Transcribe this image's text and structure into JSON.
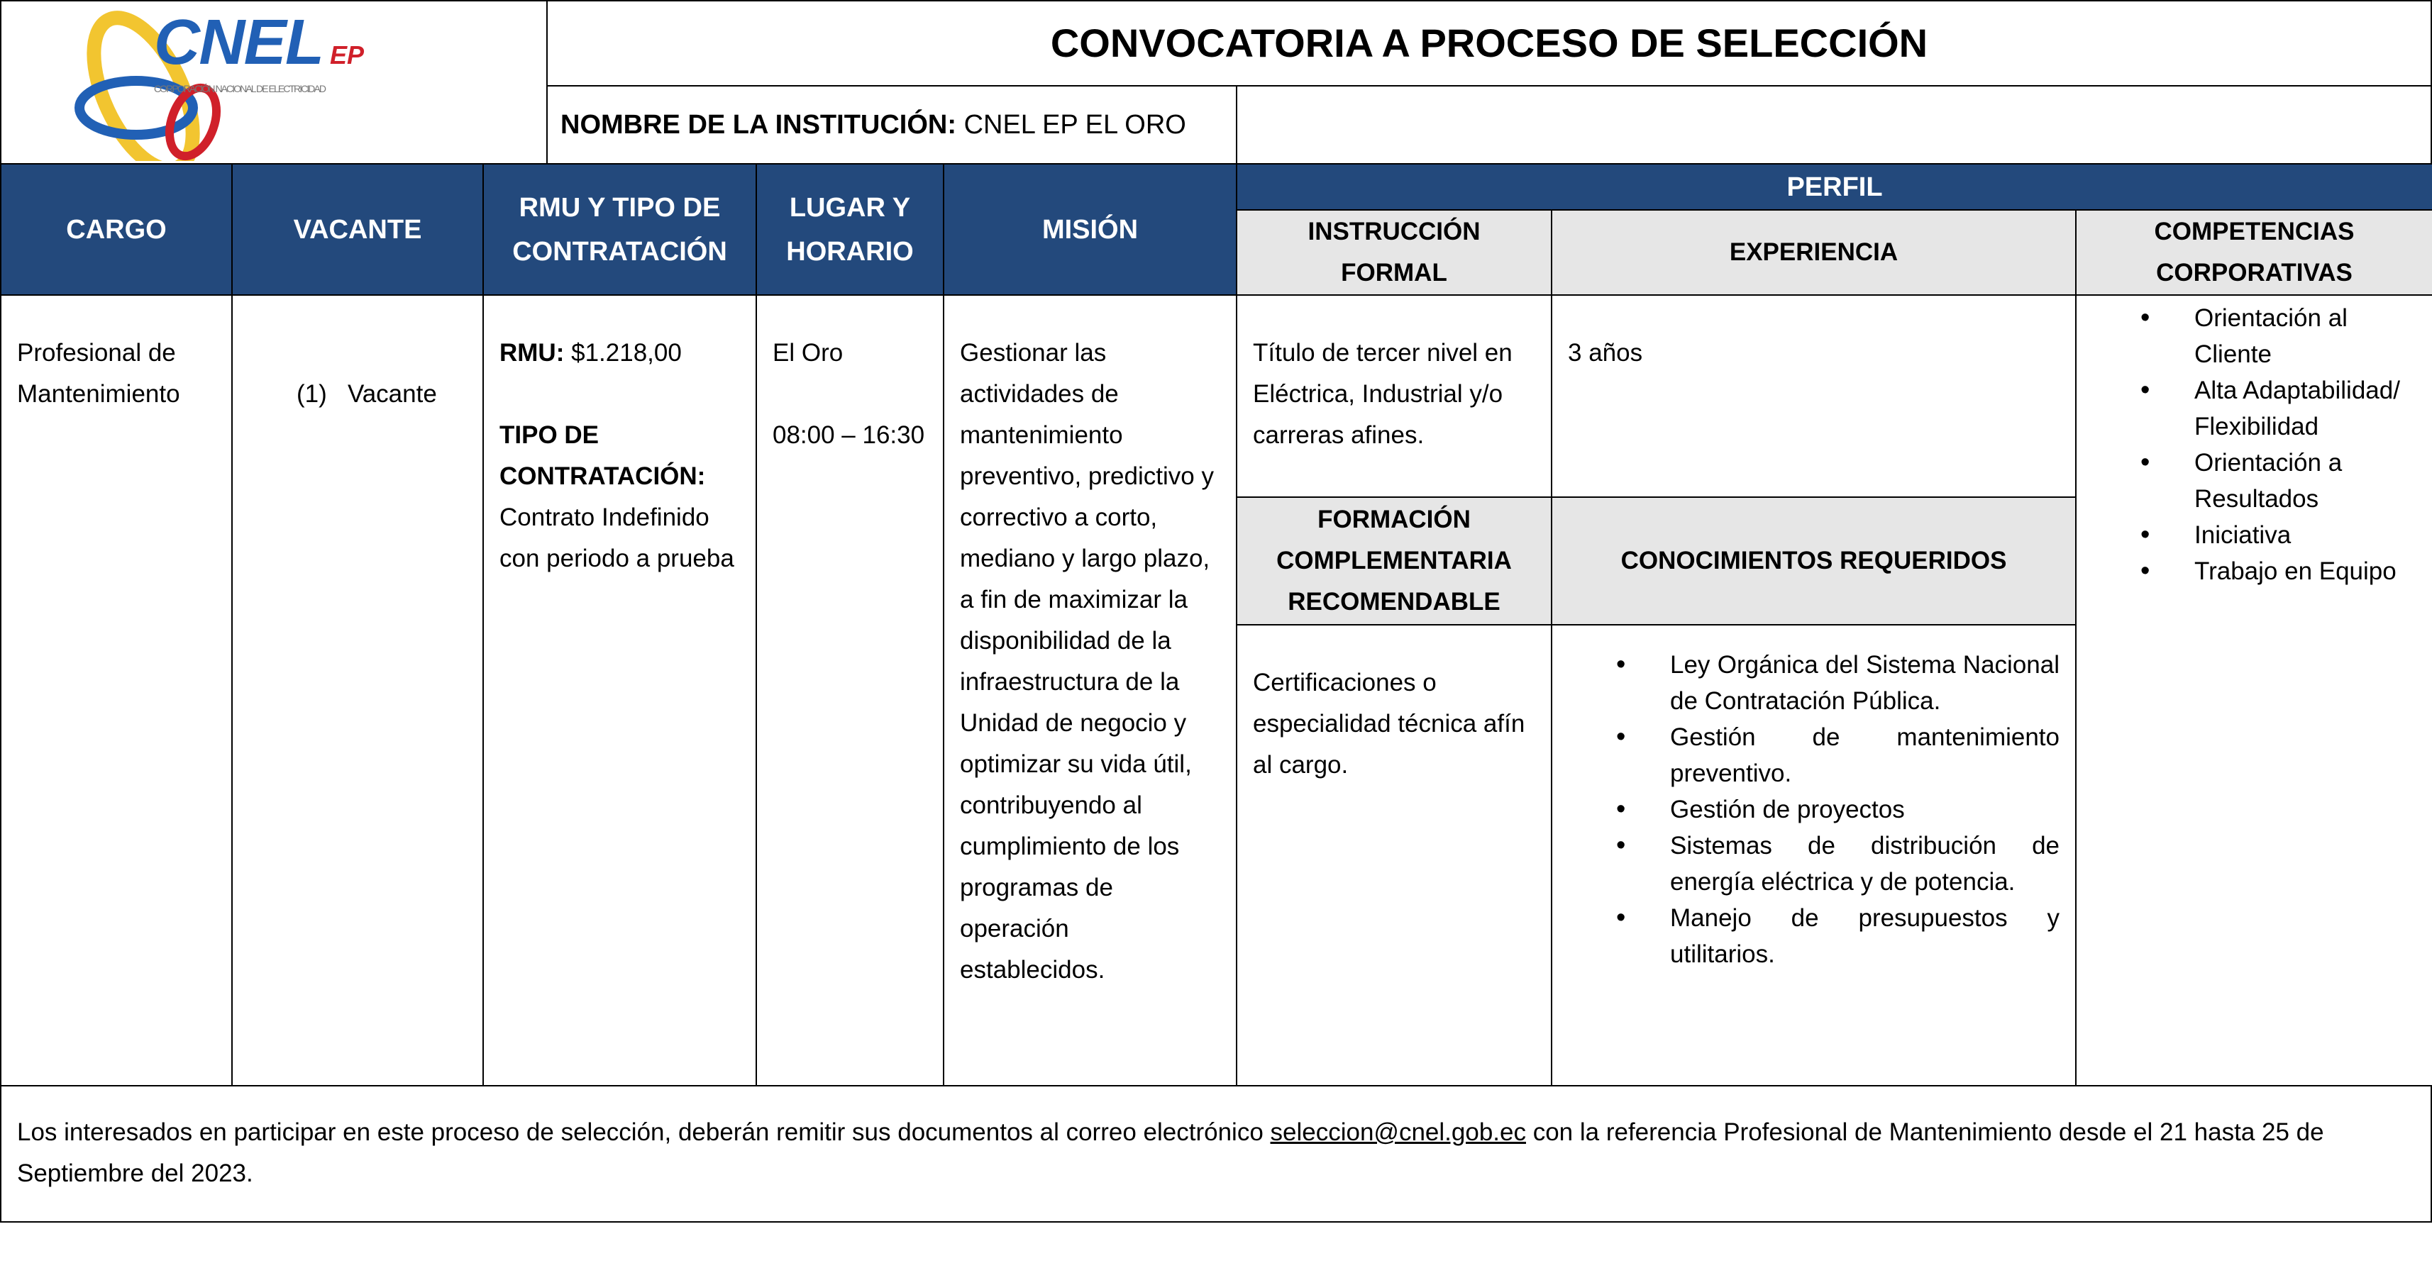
{
  "logo": {
    "text": "CNEL",
    "suffix": "EP",
    "tagline": "CORPORACIÓN NACIONAL DE ELECTRICIDAD"
  },
  "title": "CONVOCATORIA A PROCESO DE SELECCIÓN",
  "institution": {
    "label": "NOMBRE DE LA INSTITUCIÓN:",
    "value": "CNEL EP EL ORO"
  },
  "headers": {
    "cargo": "CARGO",
    "vacante": "VACANTE",
    "rmu_line1": "RMU Y TIPO DE",
    "rmu_line2": "CONTRATACIÓN",
    "lugar_line1": "LUGAR Y",
    "lugar_line2": "HORARIO",
    "mision": "MISIÓN",
    "perfil": "PERFIL",
    "instruccion": "INSTRUCCIÓN FORMAL",
    "experiencia": "EXPERIENCIA",
    "competencias": "COMPETENCIAS CORPORATIVAS",
    "formacion": "FORMACIÓN COMPLEMENTARIA RECOMENDABLE",
    "conocimientos": "CONOCIMIENTOS REQUERIDOS"
  },
  "row": {
    "cargo": "Profesional de Mantenimiento",
    "vacante": "(1)   Vacante",
    "rmu_label": "RMU:",
    "rmu_value": "$1.218,00",
    "tipo_label": "TIPO DE CONTRATACIÓN:",
    "tipo_value": "Contrato Indefinido con periodo a prueba",
    "lugar": "El Oro",
    "horario": "08:00 – 16:30",
    "mision": "Gestionar las actividades de mantenimiento preventivo, predictivo y correctivo a corto, mediano y largo plazo, a fin de maximizar la disponibilidad de la infraestructura de la Unidad de negocio y optimizar su vida útil, contribuyendo al cumplimiento de los programas de operación establecidos.",
    "instruccion": "Título de tercer nivel en Eléctrica, Industrial y/o carreras afines.",
    "experiencia": "3 años",
    "formacion": "Certificaciones o especialidad técnica afín al cargo.",
    "conocimientos": [
      "Ley Orgánica del Sistema Nacional de Contratación Pública.",
      "Gestión de mantenimiento preventivo.",
      "Gestión de proyectos",
      "Sistemas de distribución de energía eléctrica y de potencia.",
      "Manejo de presupuestos y utilitarios."
    ],
    "competencias": [
      "Orientación al Cliente",
      "Alta Adaptabilidad/ Flexibilidad",
      "Orientación a Resultados",
      "Iniciativa",
      "Trabajo en Equipo"
    ]
  },
  "footer": {
    "before": "Los interesados en participar en este proceso de selección, deberán remitir sus documentos al correo electrónico ",
    "email": "seleccion@cnel.gob.ec",
    "after": " con la referencia  Profesional de Mantenimiento desde el 21 hasta 25 de Septiembre del 2023."
  },
  "colors": {
    "header_blue": "#23497c",
    "header_gray": "#e6e6e6",
    "logo_blue": "#2160b5",
    "logo_red": "#d0202a",
    "logo_yellow": "#f2c530"
  }
}
